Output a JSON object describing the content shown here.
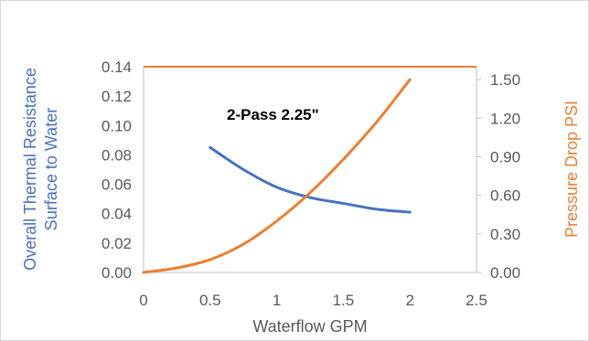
{
  "chart_data": {
    "type": "line",
    "annotation": "2-Pass 2.25\"",
    "xlabel": "Waterflow GPM",
    "ylabel_left": "Overall Thermal Resistance Surface to Water",
    "ylabel_left_lines": [
      "Overall Thermal Resistance",
      "Surface to Water"
    ],
    "ylabel_right": "Pressure Drop PSI",
    "xlim": [
      0,
      2.5
    ],
    "ylim_left": [
      0,
      0.14
    ],
    "ylim_right": [
      0,
      1.6
    ],
    "x_ticks": [
      "0",
      "0.5",
      "1",
      "1.5",
      "2",
      "2.5"
    ],
    "y_left_ticks": [
      "0.00",
      "0.02",
      "0.04",
      "0.06",
      "0.08",
      "0.10",
      "0.12",
      "0.14"
    ],
    "y_right_ticks": [
      "0.00",
      "0.30",
      "0.60",
      "0.90",
      "1.20",
      "1.50"
    ],
    "grid": false,
    "series": [
      {
        "axis": "left",
        "color": "#4472c4",
        "x": [
          0.5,
          0.75,
          1.0,
          1.25,
          1.5,
          1.75,
          2.0
        ],
        "y": [
          0.085,
          0.07,
          0.058,
          0.051,
          0.047,
          0.043,
          0.041
        ]
      },
      {
        "axis": "right",
        "color": "#ed7d31",
        "x": [
          0.0,
          0.25,
          0.5,
          0.75,
          1.0,
          1.25,
          1.5,
          1.75,
          2.0
        ],
        "y": [
          0.0,
          0.035,
          0.1,
          0.22,
          0.4,
          0.62,
          0.88,
          1.17,
          1.5
        ]
      }
    ]
  }
}
